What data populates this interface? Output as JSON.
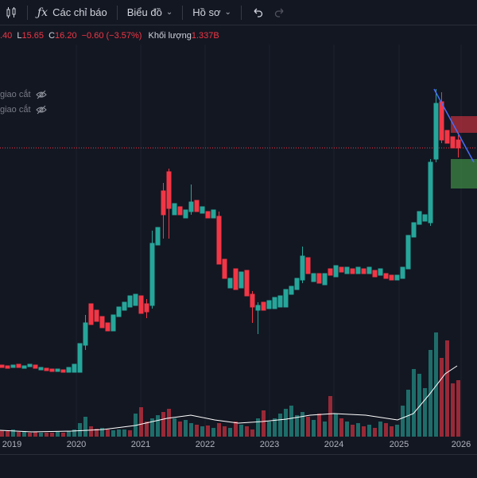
{
  "toolbar": {
    "indicators_label": "Các chỉ báo",
    "chart_label": "Biểu đồ",
    "profile_label": "Hồ sơ"
  },
  "legend": {
    "open_partial": ".40",
    "low_key": "L",
    "low_value": "15.65",
    "close_key": "C",
    "close_value": "16.20",
    "change": "−0.60 (−3.57%)",
    "volume_label": "Khối lượng",
    "volume_value": "1.337B"
  },
  "indicators": [
    {
      "label": "giao cắt"
    },
    {
      "label": "giao cắt"
    }
  ],
  "colors": {
    "up": "#26a69a",
    "down": "#f23645",
    "trend": "#4a6cf7",
    "ma": "#ffffff"
  },
  "chart_data": {
    "type": "candlestick",
    "x_tick_labels": [
      "2019",
      "2020",
      "2021",
      "2022",
      "2023",
      "2024",
      "2025",
      "2026"
    ]
  }
}
